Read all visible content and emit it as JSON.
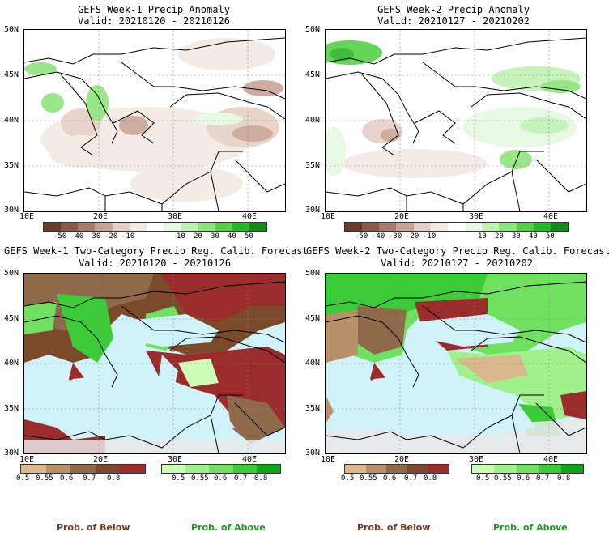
{
  "panels": [
    {
      "title": "GEFS Week-1 Precip Anomaly",
      "valid": "Valid: 20210120 - 20210126"
    },
    {
      "title": "GEFS Week-2 Precip Anomaly",
      "valid": "Valid: 20210127 - 20210202"
    },
    {
      "title": "GEFS Week-1 Two-Category Precip Reg. Calib. Forecast",
      "valid": "Valid: 20210120 - 20210126"
    },
    {
      "title": "GEFS Week-2 Two-Category Precip Reg. Calib. Forecast",
      "valid": "Valid: 20210127 - 20210202"
    }
  ],
  "axes": {
    "lat": [
      "50N",
      "45N",
      "40N",
      "35N",
      "30N"
    ],
    "lon": [
      "10E",
      "20E",
      "30E",
      "40E"
    ]
  },
  "anomaly_colorbar": {
    "labels": [
      "-50",
      "-40",
      "-30",
      "-20",
      "-10",
      "10",
      "20",
      "30",
      "40",
      "50"
    ],
    "colors": [
      "#6b3b2c",
      "#8b5a48",
      "#a87c6a",
      "#c9a596",
      "#e6d0c6",
      "#f4e9e3",
      "#ffffff",
      "#e6f9e0",
      "#bff2b3",
      "#8fe57d",
      "#55d048",
      "#2bb52a",
      "#128c15"
    ]
  },
  "prob_colorbars": {
    "below": {
      "labels": [
        "0.5",
        "0.55",
        "0.6",
        "0.7",
        "0.8"
      ],
      "colors": [
        "#d8b88c",
        "#b8906a",
        "#8f6a4a",
        "#7a4a2a",
        "#9b2c2c"
      ]
    },
    "above": {
      "labels": [
        "0.5",
        "0.55",
        "0.6",
        "0.7",
        "0.8"
      ],
      "colors": [
        "#ccffb8",
        "#a0f08c",
        "#6fe060",
        "#3ccc3a",
        "#10a818"
      ]
    }
  },
  "footer": {
    "below": "Prob. of Below",
    "above": "Prob. of Above"
  },
  "colors": {
    "ocean": "#cff3f8",
    "land": "#ffffff",
    "nodata": "#e8e8e8",
    "below": "#9b2c2c",
    "above": "#10a818"
  }
}
